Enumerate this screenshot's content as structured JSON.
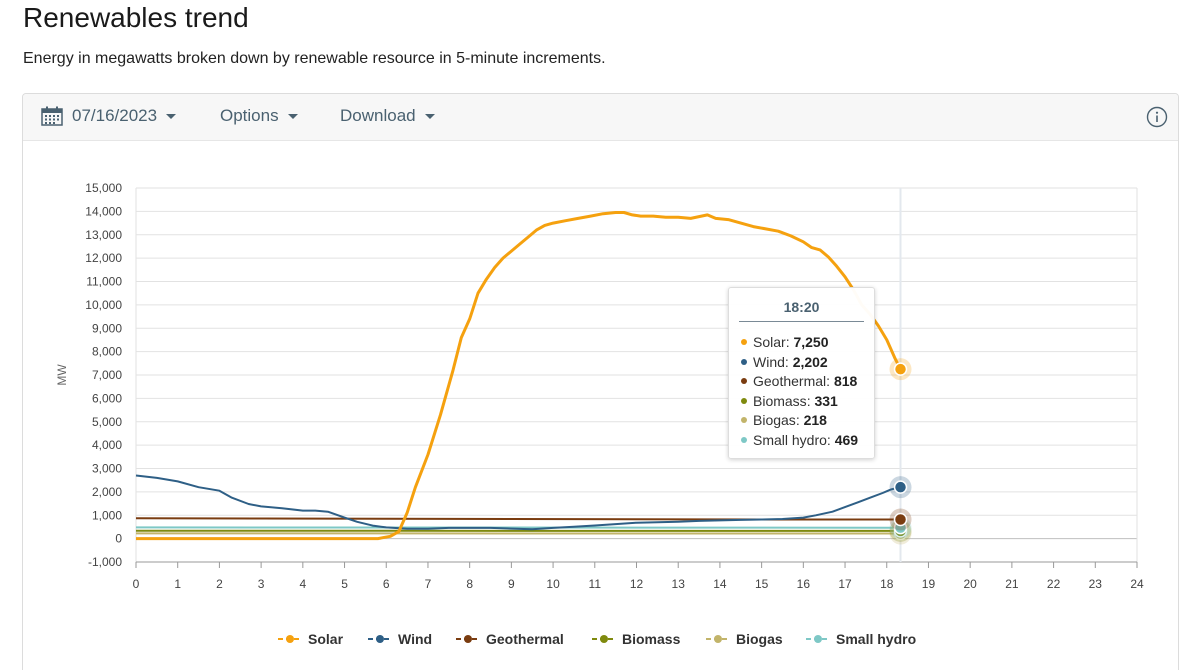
{
  "page": {
    "title": "Renewables trend",
    "subtitle": "Energy in megawatts broken down by renewable resource in 5-minute increments."
  },
  "toolbar": {
    "date_label": "07/16/2023",
    "options_label": "Options",
    "download_label": "Download",
    "icons": {
      "date": "calendar-icon",
      "info": "info-icon",
      "dropdown": "caret-down-icon"
    }
  },
  "tooltip": {
    "time": "18:20",
    "rows": [
      {
        "name": "Solar",
        "value": "7,250",
        "color": "#f5a10f"
      },
      {
        "name": "Wind",
        "value": "2,202",
        "color": "#2e5f86"
      },
      {
        "name": "Geothermal",
        "value": "818",
        "color": "#7a3c10"
      },
      {
        "name": "Biomass",
        "value": "331",
        "color": "#7f8a0e"
      },
      {
        "name": "Biogas",
        "value": "218",
        "color": "#c2b46a"
      },
      {
        "name": "Small hydro",
        "value": "469",
        "color": "#7ec8c6"
      }
    ]
  },
  "chart_data": {
    "type": "line",
    "title": "",
    "xlabel": "",
    "ylabel": "MW",
    "xlim": [
      0,
      24
    ],
    "ylim": [
      -1000,
      15000
    ],
    "x_ticks": [
      "0",
      "1",
      "2",
      "3",
      "4",
      "5",
      "6",
      "7",
      "8",
      "9",
      "10",
      "11",
      "12",
      "13",
      "14",
      "15",
      "16",
      "17",
      "18",
      "19",
      "20",
      "21",
      "22",
      "23",
      "24"
    ],
    "y_ticks": [
      "-1,000",
      "0",
      "1,000",
      "2,000",
      "3,000",
      "4,000",
      "5,000",
      "6,000",
      "7,000",
      "8,000",
      "9,000",
      "10,000",
      "11,000",
      "12,000",
      "13,000",
      "14,000",
      "15,000"
    ],
    "y_tick_values": [
      -1000,
      0,
      1000,
      2000,
      3000,
      4000,
      5000,
      6000,
      7000,
      8000,
      9000,
      10000,
      11000,
      12000,
      13000,
      14000,
      15000
    ],
    "grid": true,
    "legend_position": "bottom",
    "crosshair_x": 18.33,
    "series": [
      {
        "name": "Solar",
        "color": "#f5a10f",
        "x": [
          0,
          1,
          2,
          3,
          4,
          5,
          5.8,
          6.1,
          6.3,
          6.5,
          6.7,
          7.0,
          7.3,
          7.6,
          7.8,
          8.0,
          8.2,
          8.4,
          8.6,
          8.8,
          9.0,
          9.2,
          9.4,
          9.6,
          9.8,
          10.0,
          10.3,
          10.6,
          10.9,
          11.2,
          11.5,
          11.7,
          11.9,
          12.1,
          12.4,
          12.7,
          13.0,
          13.3,
          13.7,
          13.9,
          14.2,
          14.5,
          14.8,
          15.1,
          15.4,
          15.7,
          16.0,
          16.2,
          16.4,
          16.6,
          16.8,
          17.0,
          17.2,
          17.4,
          17.6,
          17.8,
          18.0,
          18.2,
          18.33
        ],
        "y": [
          0,
          0,
          0,
          0,
          0,
          0,
          0,
          100,
          300,
          1100,
          2200,
          3600,
          5300,
          7200,
          8600,
          9400,
          10500,
          11100,
          11600,
          12000,
          12300,
          12600,
          12900,
          13200,
          13400,
          13500,
          13600,
          13700,
          13800,
          13900,
          13950,
          13950,
          13850,
          13800,
          13800,
          13750,
          13750,
          13700,
          13850,
          13700,
          13650,
          13500,
          13350,
          13250,
          13150,
          12950,
          12700,
          12450,
          12350,
          12050,
          11650,
          11200,
          10650,
          10000,
          9600,
          9100,
          8500,
          7700,
          7250
        ]
      },
      {
        "name": "Wind",
        "color": "#2e5f86",
        "x": [
          0,
          0.5,
          1,
          1.5,
          2,
          2.3,
          2.7,
          3,
          3.5,
          4,
          4.3,
          4.6,
          5,
          5.3,
          5.7,
          6,
          6.5,
          7,
          7.5,
          8,
          8.5,
          9,
          9.5,
          10,
          10.5,
          11,
          11.5,
          12,
          12.5,
          13,
          13.5,
          14,
          14.5,
          15,
          15.5,
          16,
          16.3,
          16.7,
          17,
          17.3,
          17.6,
          17.9,
          18.1,
          18.33
        ],
        "y": [
          2700,
          2600,
          2450,
          2200,
          2050,
          1750,
          1480,
          1380,
          1300,
          1200,
          1200,
          1150,
          900,
          720,
          550,
          480,
          420,
          420,
          460,
          460,
          460,
          430,
          400,
          460,
          510,
          560,
          620,
          680,
          700,
          720,
          760,
          780,
          800,
          820,
          840,
          900,
          1000,
          1150,
          1350,
          1550,
          1750,
          1950,
          2100,
          2202
        ]
      },
      {
        "name": "Geothermal",
        "color": "#7a3c10",
        "x": [
          0,
          3,
          6,
          9,
          12,
          15,
          18.33
        ],
        "y": [
          870,
          860,
          850,
          840,
          830,
          820,
          818
        ]
      },
      {
        "name": "Biomass",
        "color": "#7f8a0e",
        "x": [
          0,
          6,
          12,
          18.33
        ],
        "y": [
          340,
          335,
          332,
          331
        ]
      },
      {
        "name": "Biogas",
        "color": "#c2b46a",
        "x": [
          0,
          6,
          12,
          18.33
        ],
        "y": [
          225,
          222,
          220,
          218
        ]
      },
      {
        "name": "Small hydro",
        "color": "#7ec8c6",
        "x": [
          0,
          6,
          12,
          18.33
        ],
        "y": [
          480,
          475,
          472,
          469
        ]
      }
    ]
  }
}
